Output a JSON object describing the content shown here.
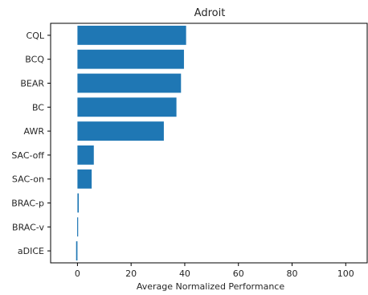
{
  "chart_data": {
    "type": "bar",
    "orientation": "horizontal",
    "title": "Adroit",
    "xlabel": "Average Normalized Performance",
    "ylabel": "",
    "categories": [
      "CQL",
      "BCQ",
      "BEAR",
      "BC",
      "AWR",
      "SAC-off",
      "SAC-on",
      "BRAC-p",
      "BRAC-v",
      "aDICE"
    ],
    "values": [
      40.5,
      39.7,
      38.6,
      36.9,
      32.2,
      6.1,
      5.3,
      0.5,
      -0.1,
      -0.5
    ],
    "xlim": [
      -10,
      108
    ],
    "xticks": [
      0,
      20,
      40,
      60,
      80,
      100
    ],
    "grid": false,
    "bar_color": "#1f77b4"
  }
}
